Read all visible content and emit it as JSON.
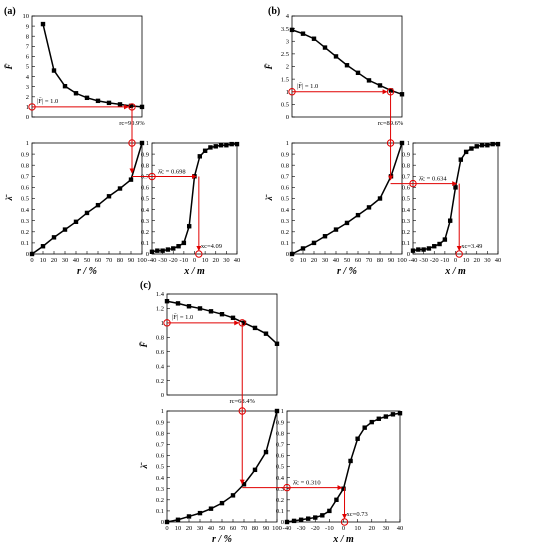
{
  "panel_labels": [
    "(a)",
    "(b)",
    "(c)"
  ],
  "colors": {
    "series": "#000000",
    "guide": "#e00000"
  },
  "chart_data": [
    {
      "id": "a-top",
      "type": "line",
      "x": [
        10,
        20,
        30,
        40,
        50,
        60,
        70,
        80,
        90,
        100
      ],
      "values": [
        9.2,
        4.6,
        3.05,
        2.35,
        1.9,
        1.6,
        1.4,
        1.25,
        1.1,
        1.0
      ],
      "xlim": [
        0,
        100
      ],
      "ylim": [
        0,
        10
      ],
      "yticks": [
        "0",
        "1",
        "2",
        "3",
        "4",
        "5",
        "6",
        "7",
        "8",
        "9",
        "10"
      ],
      "ylabel": "F̄",
      "annotations": [
        "|F̄| = 1.0",
        "rc=90.9%"
      ],
      "guide": {
        "y": 1.0,
        "x": 90.9
      }
    },
    {
      "id": "a-mid",
      "type": "line",
      "x": [
        0,
        10,
        20,
        30,
        40,
        50,
        60,
        70,
        80,
        90,
        100
      ],
      "values": [
        0.0,
        0.07,
        0.15,
        0.22,
        0.29,
        0.37,
        0.44,
        0.52,
        0.59,
        0.67,
        1.0
      ],
      "xlim": [
        0,
        100
      ],
      "ylim": [
        0,
        1
      ],
      "xticks": [
        "0",
        "10",
        "20",
        "30",
        "40",
        "50",
        "60",
        "70",
        "80",
        "90",
        "100"
      ],
      "yticks": [
        "0",
        "0.1",
        "0.2",
        "0.3",
        "0.4",
        "0.5",
        "0.6",
        "0.7",
        "0.8",
        "0.9",
        "1"
      ],
      "xlabel": "r / %",
      "ylabel": "λ̄",
      "guide": {
        "x": 90.9,
        "y": 0.698
      }
    },
    {
      "id": "a-right",
      "type": "line",
      "x": [
        -40,
        -35,
        -30,
        -25,
        -20,
        -15,
        -10,
        -5,
        0,
        5,
        10,
        15,
        20,
        25,
        30,
        35,
        40
      ],
      "values": [
        0.02,
        0.03,
        0.03,
        0.04,
        0.05,
        0.07,
        0.1,
        0.25,
        0.7,
        0.88,
        0.93,
        0.96,
        0.97,
        0.98,
        0.98,
        0.99,
        0.99
      ],
      "xlim": [
        -40,
        40
      ],
      "ylim": [
        0,
        1
      ],
      "xticks": [
        "-40",
        "-30",
        "-20",
        "-10",
        "0",
        "10",
        "20",
        "30",
        "40"
      ],
      "yticks": [
        "0",
        "0.1",
        "0.2",
        "0.3",
        "0.4",
        "0.5",
        "0.6",
        "0.7",
        "0.8",
        "0.9",
        "1"
      ],
      "xlabel": "x / m",
      "annotations": [
        "λ̄c = 0.698",
        "xc=4.09"
      ],
      "guide": {
        "x": 4.09,
        "y": 0.698
      }
    },
    {
      "id": "b-top",
      "type": "line",
      "x": [
        0,
        10,
        20,
        30,
        40,
        50,
        60,
        70,
        80,
        90,
        100
      ],
      "values": [
        3.45,
        3.3,
        3.1,
        2.75,
        2.4,
        2.05,
        1.75,
        1.45,
        1.25,
        1.05,
        0.9
      ],
      "xlim": [
        0,
        100
      ],
      "ylim": [
        0,
        4
      ],
      "yticks": [
        "0",
        "0.5",
        "1",
        "1.5",
        "2",
        "2.5",
        "3",
        "3.5",
        "4"
      ],
      "ylabel": "F̄",
      "annotations": [
        "|F̄| = 1.0",
        "rc=89.6%"
      ],
      "guide": {
        "y": 1.0,
        "x": 89.6
      }
    },
    {
      "id": "b-mid",
      "type": "line",
      "x": [
        0,
        10,
        20,
        30,
        40,
        50,
        60,
        70,
        80,
        90,
        100
      ],
      "values": [
        0.0,
        0.05,
        0.1,
        0.16,
        0.22,
        0.28,
        0.35,
        0.42,
        0.5,
        0.7,
        1.0
      ],
      "xlim": [
        0,
        100
      ],
      "ylim": [
        0,
        1
      ],
      "xticks": [
        "0",
        "10",
        "20",
        "30",
        "40",
        "50",
        "60",
        "70",
        "80",
        "90",
        "100"
      ],
      "yticks": [
        "0",
        "0.1",
        "0.2",
        "0.3",
        "0.4",
        "0.5",
        "0.6",
        "0.7",
        "0.8",
        "0.9",
        "1"
      ],
      "xlabel": "r / %",
      "ylabel": "λ̄",
      "guide": {
        "x": 89.6,
        "y": 0.634
      }
    },
    {
      "id": "b-right",
      "type": "line",
      "x": [
        -40,
        -35,
        -30,
        -25,
        -20,
        -15,
        -10,
        -5,
        0,
        5,
        10,
        15,
        20,
        25,
        30,
        35,
        40
      ],
      "values": [
        0.03,
        0.04,
        0.04,
        0.05,
        0.07,
        0.09,
        0.13,
        0.3,
        0.6,
        0.85,
        0.92,
        0.95,
        0.97,
        0.98,
        0.98,
        0.99,
        0.99
      ],
      "xlim": [
        -40,
        40
      ],
      "ylim": [
        0,
        1
      ],
      "xticks": [
        "-40",
        "-30",
        "-20",
        "-10",
        "0",
        "10",
        "20",
        "30",
        "40"
      ],
      "yticks": [
        "0",
        "0.1",
        "0.2",
        "0.3",
        "0.4",
        "0.5",
        "0.6",
        "0.7",
        "0.8",
        "0.9",
        "1"
      ],
      "xlabel": "x / m",
      "annotations": [
        "λ̄c = 0.634",
        "xc=3.49"
      ],
      "guide": {
        "x": 3.49,
        "y": 0.634
      }
    },
    {
      "id": "c-top",
      "type": "line",
      "x": [
        0,
        10,
        20,
        30,
        40,
        50,
        60,
        70,
        80,
        90,
        100
      ],
      "values": [
        1.3,
        1.27,
        1.23,
        1.2,
        1.16,
        1.12,
        1.07,
        1.0,
        0.93,
        0.85,
        0.71
      ],
      "xlim": [
        0,
        100
      ],
      "ylim": [
        0,
        1.4
      ],
      "yticks": [
        "0",
        "0.2",
        "0.4",
        "0.6",
        "0.8",
        "1",
        "1.2",
        "1.4"
      ],
      "ylabel": "F̄",
      "annotations": [
        "|F̄| = 1.0",
        "rc=68.4%"
      ],
      "guide": {
        "y": 1.0,
        "x": 68.4
      }
    },
    {
      "id": "c-mid",
      "type": "line",
      "x": [
        0,
        10,
        20,
        30,
        40,
        50,
        60,
        70,
        80,
        90,
        100
      ],
      "values": [
        0.0,
        0.02,
        0.05,
        0.08,
        0.12,
        0.17,
        0.24,
        0.34,
        0.47,
        0.63,
        1.0
      ],
      "xlim": [
        0,
        100
      ],
      "ylim": [
        0,
        1
      ],
      "xticks": [
        "0",
        "10",
        "20",
        "30",
        "40",
        "50",
        "60",
        "70",
        "80",
        "90",
        "100"
      ],
      "yticks": [
        "0",
        "0.1",
        "0.2",
        "0.3",
        "0.4",
        "0.5",
        "0.6",
        "0.7",
        "0.8",
        "0.9",
        "1"
      ],
      "xlabel": "r / %",
      "ylabel": "λ̄",
      "guide": {
        "x": 68.4,
        "y": 0.31
      }
    },
    {
      "id": "c-right",
      "type": "line",
      "x": [
        -40,
        -35,
        -30,
        -25,
        -20,
        -15,
        -10,
        -5,
        0,
        5,
        10,
        15,
        20,
        25,
        30,
        35,
        40
      ],
      "values": [
        0.0,
        0.01,
        0.02,
        0.03,
        0.04,
        0.06,
        0.1,
        0.2,
        0.3,
        0.55,
        0.75,
        0.85,
        0.9,
        0.93,
        0.95,
        0.97,
        0.98
      ],
      "xlim": [
        -40,
        40
      ],
      "ylim": [
        0,
        1
      ],
      "xticks": [
        "-40",
        "-30",
        "-20",
        "-10",
        "0",
        "10",
        "20",
        "30",
        "40"
      ],
      "yticks": [
        "0",
        "0.1",
        "0.2",
        "0.3",
        "0.4",
        "0.5",
        "0.6",
        "0.7",
        "0.8",
        "0.9",
        "1"
      ],
      "xlabel": "x / m",
      "annotations": [
        "λ̄c = 0.310",
        "xc=0.73"
      ],
      "guide": {
        "x": 0.73,
        "y": 0.31
      }
    }
  ]
}
